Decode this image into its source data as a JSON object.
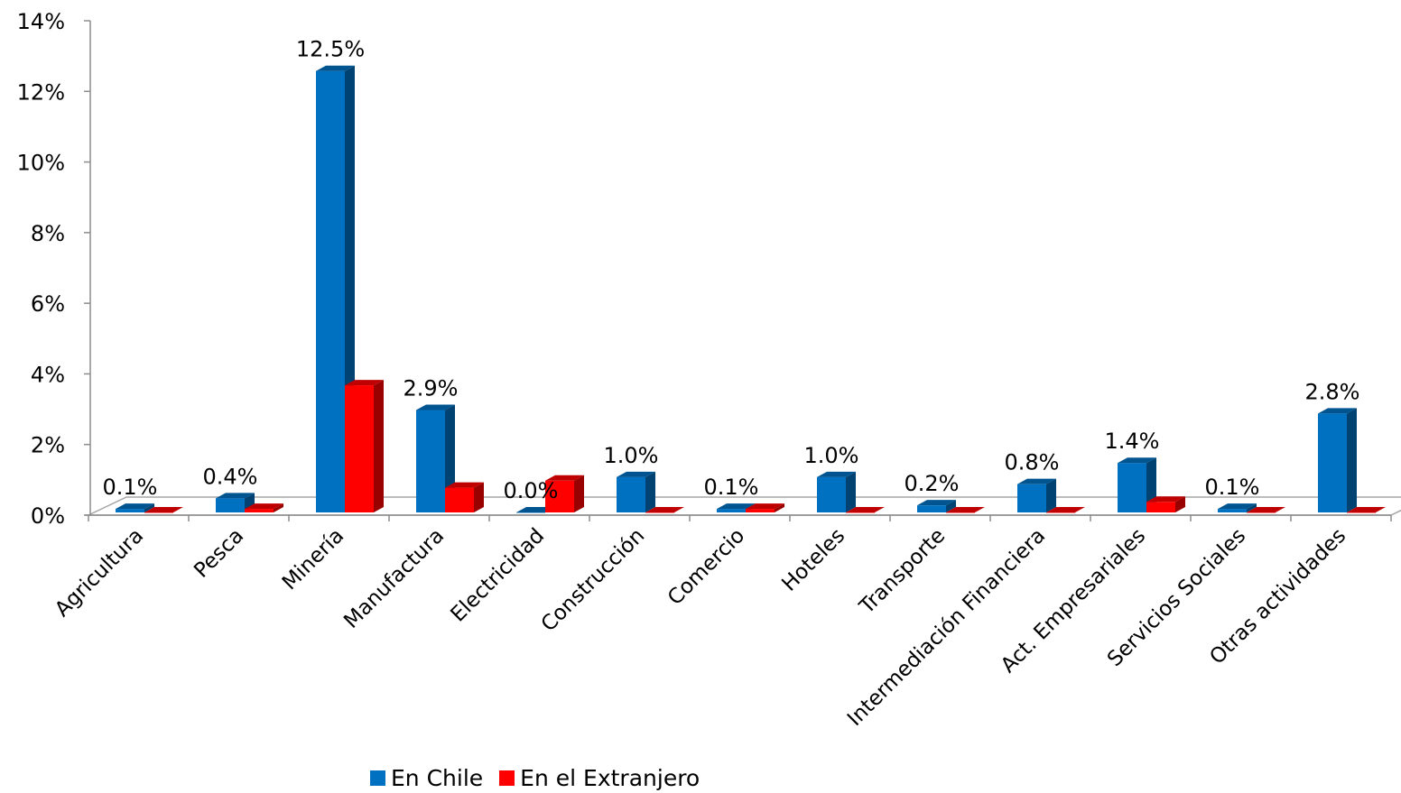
{
  "chart_data": {
    "type": "bar",
    "categories": [
      "Agricultura",
      "Pesca",
      "Minería",
      "Manufactura",
      "Electricidad",
      "Construcción",
      "Comercio",
      "Hoteles",
      "Transporte",
      "Intermediación Financiera",
      "Act. Empresariales",
      "Servicios Sociales",
      "Otras actividades"
    ],
    "series": [
      {
        "name": "En Chile",
        "color": "#0070C0",
        "values": [
          0.1,
          0.4,
          12.5,
          2.9,
          0.0,
          1.0,
          0.1,
          1.0,
          0.2,
          0.8,
          1.4,
          0.1,
          2.8
        ],
        "data_labels": [
          "0.1%",
          "0.4%",
          "12.5%",
          "2.9%",
          "0.0%",
          "1.0%",
          "0.1%",
          "1.0%",
          "0.2%",
          "0.8%",
          "1.4%",
          "0.1%",
          "2.8%"
        ]
      },
      {
        "name": "En el Extranjero",
        "color": "#FF0000",
        "values": [
          0.0,
          0.1,
          3.6,
          0.7,
          0.9,
          0.0,
          0.1,
          0.0,
          0.0,
          0.0,
          0.3,
          0.0,
          0.0
        ]
      }
    ],
    "ylim": [
      0,
      14
    ],
    "yticks": [
      0,
      2,
      4,
      6,
      8,
      10,
      12,
      14
    ],
    "ytick_labels": [
      "0%",
      "2%",
      "4%",
      "6%",
      "8%",
      "10%",
      "12%",
      "14%"
    ],
    "legend_position": "bottom",
    "grid": false
  }
}
